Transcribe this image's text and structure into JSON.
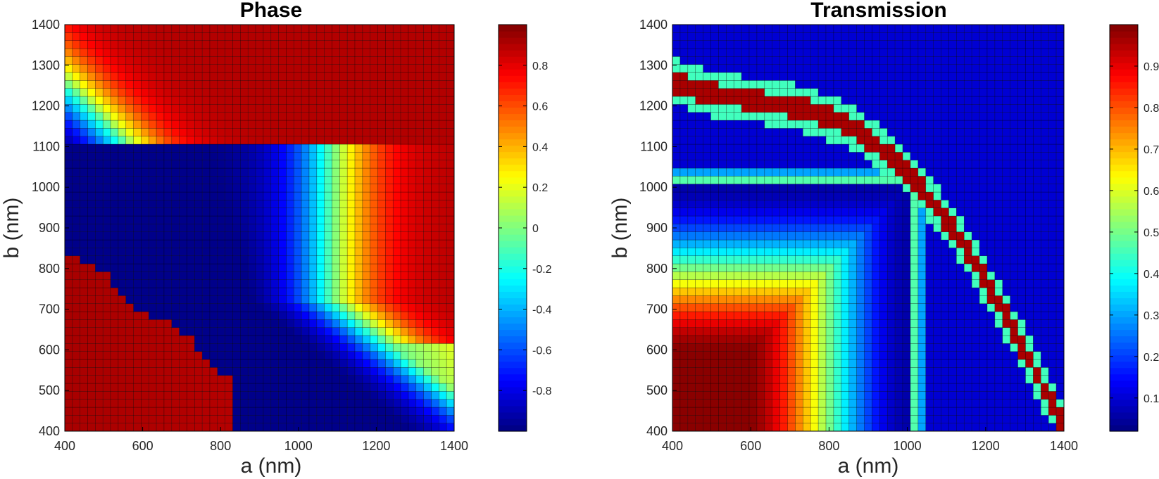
{
  "chart_data": [
    {
      "type": "heatmap",
      "title": "Phase",
      "xlabel": "a (nm)",
      "ylabel": "b (nm)",
      "xlim": [
        400,
        1400
      ],
      "ylim": [
        400,
        1400
      ],
      "xticks": [
        "400",
        "600",
        "800",
        "1000",
        "1200",
        "1400"
      ],
      "yticks": [
        "400",
        "500",
        "600",
        "700",
        "800",
        "900",
        "1000",
        "1100",
        "1200",
        "1300",
        "1400"
      ],
      "grid_step": 20,
      "grid_size": 51,
      "colormap": "jet",
      "clim": [
        -1,
        1
      ],
      "colorbar_ticks": [
        "-0.8",
        "-0.6",
        "-0.4",
        "-0.2",
        "0",
        "0.2",
        "0.4",
        "0.6",
        "0.8"
      ],
      "colorbar_values": [
        -0.8,
        -0.6,
        -0.4,
        -0.2,
        0,
        0.2,
        0.4,
        0.6,
        0.8
      ]
    },
    {
      "type": "heatmap",
      "title": "Transmission",
      "xlabel": "a (nm)",
      "ylabel": "b (nm)",
      "xlim": [
        400,
        1400
      ],
      "ylim": [
        400,
        1400
      ],
      "xticks": [
        "400",
        "600",
        "800",
        "1000",
        "1200",
        "1400"
      ],
      "yticks": [
        "400",
        "500",
        "600",
        "700",
        "800",
        "900",
        "1000",
        "1100",
        "1200",
        "1300",
        "1400"
      ],
      "grid_step": 20,
      "grid_size": 51,
      "colormap": "jet",
      "clim": [
        0.02,
        1
      ],
      "colorbar_ticks": [
        "0.1",
        "0.2",
        "0.3",
        "0.4",
        "0.5",
        "0.6",
        "0.7",
        "0.8",
        "0.9"
      ],
      "colorbar_values": [
        0.1,
        0.2,
        0.3,
        0.4,
        0.5,
        0.6,
        0.7,
        0.8,
        0.9
      ]
    }
  ]
}
